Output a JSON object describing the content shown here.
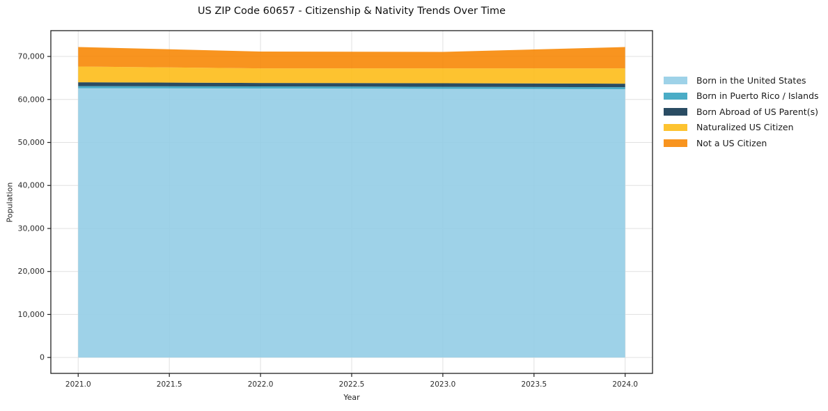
{
  "chart_data": {
    "type": "area",
    "stacked": true,
    "title": "US ZIP Code 60657 - Citizenship & Nativity Trends Over Time",
    "xlabel": "Year",
    "ylabel": "Population",
    "x": [
      2021,
      2022,
      2023,
      2024
    ],
    "series": [
      {
        "name": "Born in the United States",
        "color": "#94cde5",
        "values": [
          62600,
          62550,
          62470,
          62390
        ]
      },
      {
        "name": "Born in Puerto Rico / Islands",
        "color": "#36a3c0",
        "values": [
          500,
          490,
          480,
          480
        ]
      },
      {
        "name": "Born Abroad of US Parent(s)",
        "color": "#133952",
        "values": [
          900,
          800,
          820,
          810
        ]
      },
      {
        "name": "Naturalized US Citizen",
        "color": "#fdbc19",
        "values": [
          3650,
          3400,
          3460,
          3550
        ]
      },
      {
        "name": "Not a US Citizen",
        "color": "#f78807",
        "values": [
          4550,
          3900,
          3830,
          4970
        ]
      }
    ],
    "x_ticks": [
      2021.0,
      2021.5,
      2022.0,
      2022.5,
      2023.0,
      2023.5,
      2024.0
    ],
    "x_tick_labels": [
      "2021.0",
      "2021.5",
      "2022.0",
      "2022.5",
      "2023.0",
      "2023.5",
      "2024.0"
    ],
    "y_ticks": [
      0,
      10000,
      20000,
      30000,
      40000,
      50000,
      60000,
      70000
    ],
    "y_tick_labels": [
      "0",
      "10,000",
      "20,000",
      "30,000",
      "40,000",
      "50,000",
      "60,000",
      "70,000"
    ],
    "xlim": [
      2020.85,
      2024.15
    ],
    "ylim": [
      -3700,
      76000
    ],
    "grid": true,
    "grid_color": "#e0e0e0",
    "spine_color": "#1f1f1f",
    "tick_label_color": "#2b2b2b",
    "fill_alpha": 0.9,
    "legend_position": "right-outside"
  }
}
